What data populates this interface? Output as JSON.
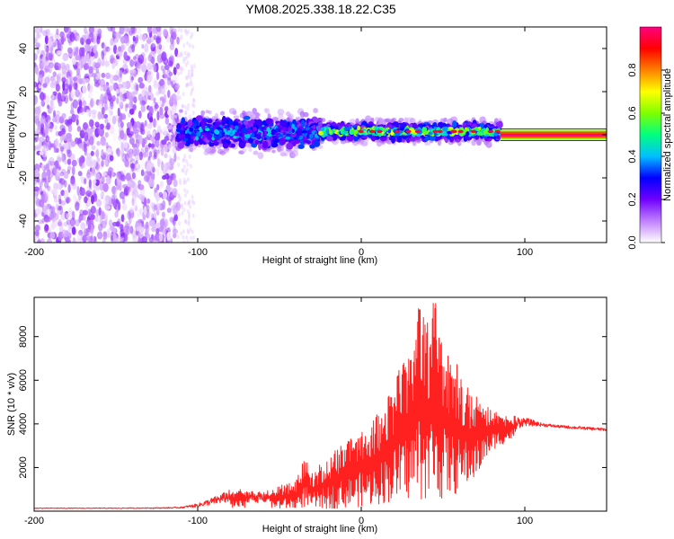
{
  "title": "YM08.2025.338.18.22.C35",
  "chart_data": [
    {
      "type": "heatmap",
      "name": "spectrogram",
      "xlabel": "Height of straight line (km)",
      "ylabel": "Frequency (Hz)",
      "xlim": [
        -200,
        150
      ],
      "ylim": [
        -50,
        50
      ],
      "xticks": [
        -200,
        -100,
        0,
        100
      ],
      "yticks": [
        -40,
        -20,
        0,
        20,
        40
      ],
      "colorbar": {
        "label": "Normalized spectral amplitude",
        "range": [
          0.0,
          1.0
        ],
        "ticks": [
          0.0,
          0.2,
          0.4,
          0.6,
          0.8
        ],
        "colormap": [
          "#ffffff",
          "#c080ff",
          "#7000ff",
          "#0000ff",
          "#00c0ff",
          "#00ff80",
          "#80ff00",
          "#ffff00",
          "#ff8000",
          "#ff0000",
          "#ff0080"
        ]
      },
      "regions": [
        {
          "x_range": [
            -200,
            -112
          ],
          "freq_range": [
            -50,
            50
          ],
          "amplitude": 0.05,
          "description": "broadband noise"
        },
        {
          "x_range": [
            -112,
            -25
          ],
          "freq_center": 1.0,
          "freq_halfwidth": 7,
          "amplitude": 0.35
        },
        {
          "x_range": [
            -25,
            85
          ],
          "freq_center": 1.5,
          "freq_halfwidth": 4,
          "amplitude": 0.55
        },
        {
          "x_range": [
            85,
            150
          ],
          "freq_center": 0.0,
          "freq_halfwidth": 1,
          "amplitude": 1.0
        }
      ]
    },
    {
      "type": "line",
      "name": "snr",
      "xlabel": "Height of straight line (km)",
      "ylabel": "SNR (10 * v/v)",
      "xlim": [
        -200,
        150
      ],
      "ylim": [
        0,
        9800
      ],
      "xticks": [
        -200,
        -100,
        0,
        100
      ],
      "yticks": [
        2000,
        4000,
        6000,
        8000
      ],
      "series": [
        {
          "name": "SNR",
          "color": "#ff2020",
          "x": [
            -200,
            -150,
            -120,
            -110,
            -100,
            -90,
            -80,
            -70,
            -60,
            -50,
            -40,
            -33,
            -32,
            -20,
            -10,
            0,
            10,
            20,
            30,
            35,
            40,
            45,
            50,
            60,
            70,
            80,
            90,
            100,
            110,
            120,
            130,
            140,
            150
          ],
          "y": [
            150,
            150,
            170,
            200,
            350,
            650,
            1000,
            1000,
            850,
            1200,
            1350,
            2800,
            1700,
            2500,
            3200,
            3800,
            4500,
            6000,
            7500,
            9500,
            8600,
            9800,
            8000,
            6500,
            5400,
            4700,
            4400,
            4300,
            4050,
            3950,
            3900,
            3850,
            3800
          ],
          "envelope_low": [
            100,
            100,
            100,
            100,
            100,
            100,
            100,
            100,
            100,
            100,
            100,
            200,
            100,
            100,
            150,
            200,
            300,
            400,
            500,
            500,
            500,
            500,
            500,
            800,
            1500,
            2800,
            3200,
            3700,
            3800,
            3750,
            3700,
            3650,
            3600
          ]
        }
      ]
    }
  ]
}
